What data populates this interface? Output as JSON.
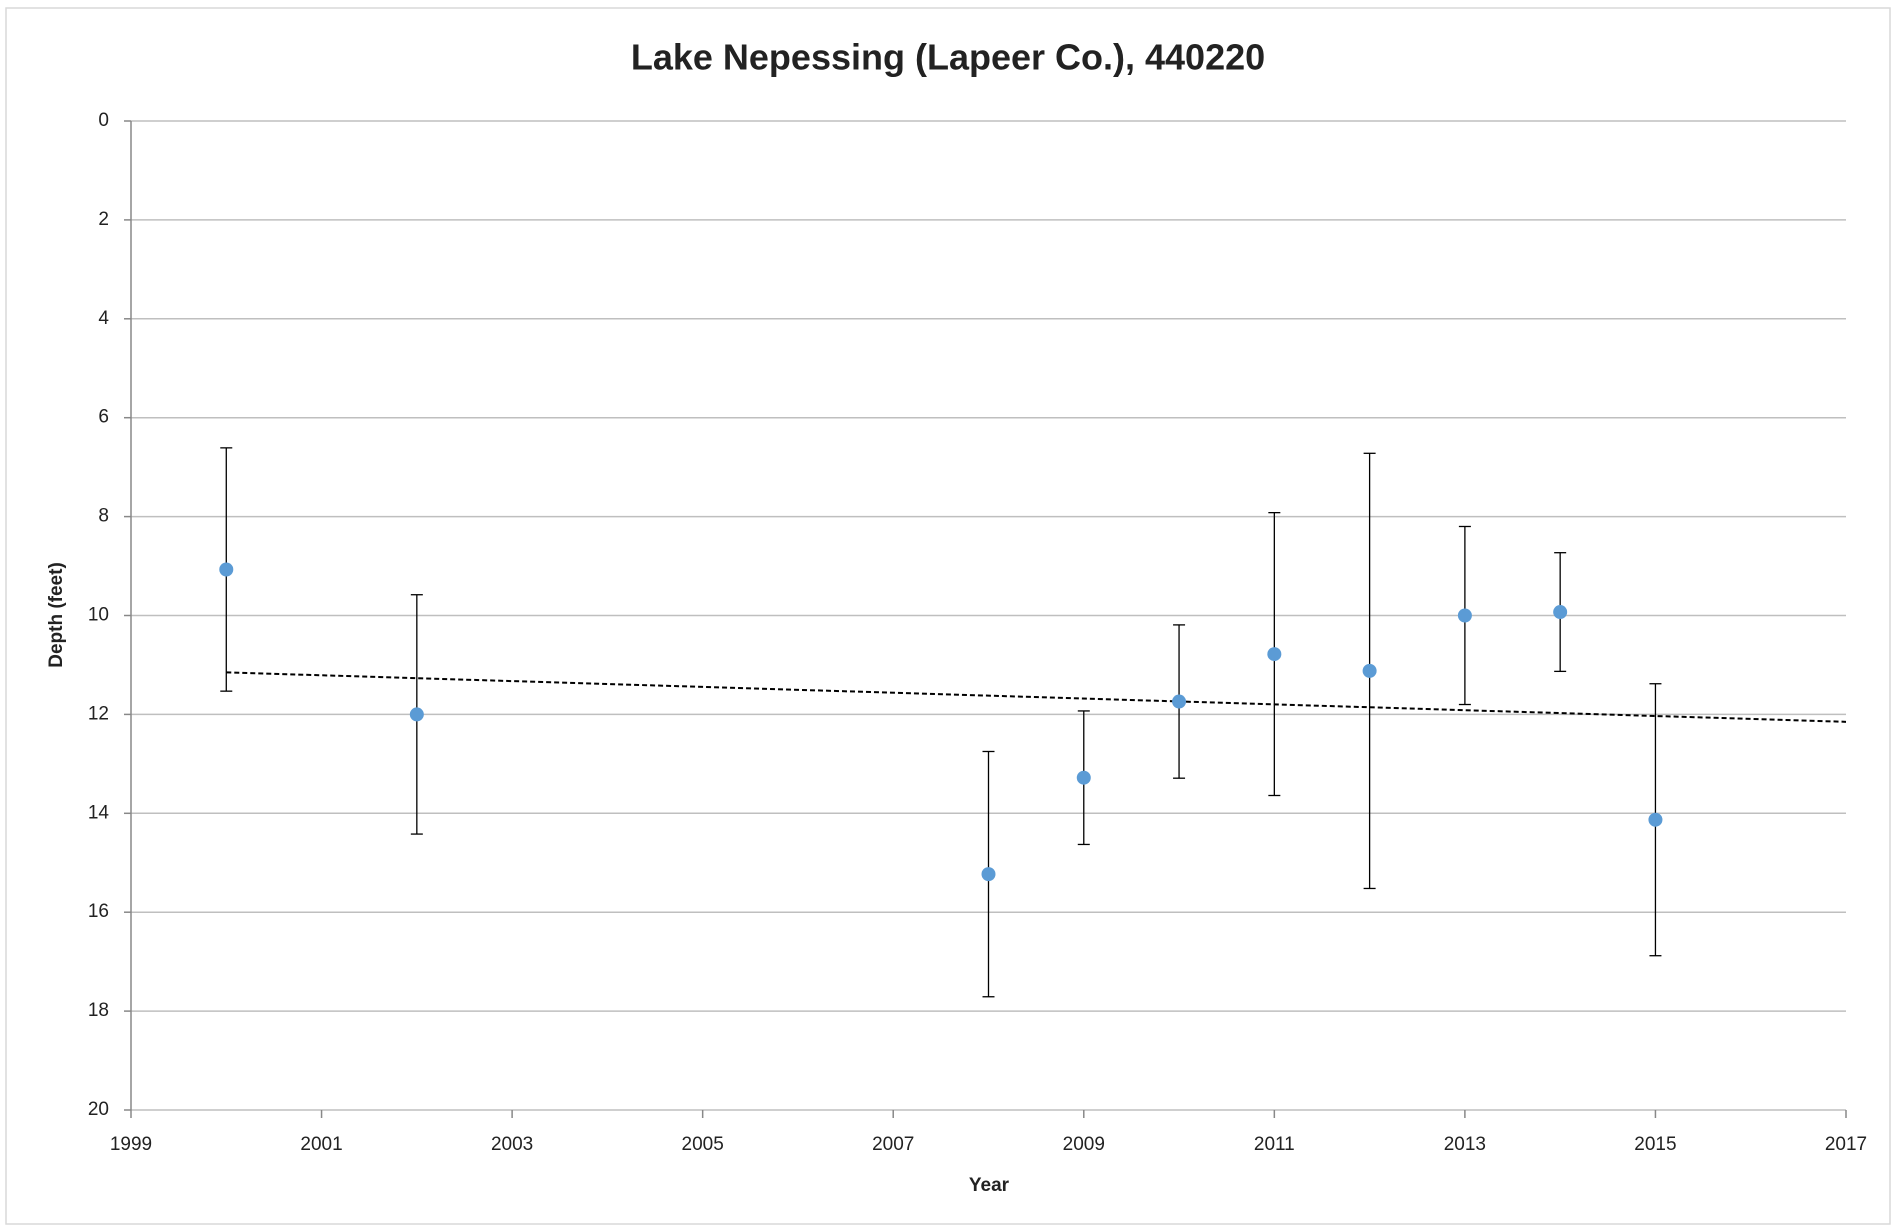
{
  "chart_data": {
    "type": "scatter",
    "title": "Lake Nepessing (Lapeer Co.), 440220",
    "x_label": "Year",
    "y_label": "Depth (feet)",
    "x": [
      2000,
      2002,
      2008,
      2009,
      2010,
      2011,
      2012,
      2013,
      2014,
      2015
    ],
    "values": [
      9.07,
      12.0,
      15.23,
      13.28,
      11.74,
      10.78,
      11.12,
      10.0,
      9.93,
      14.13
    ],
    "errors": [
      2.46,
      2.42,
      2.48,
      1.35,
      1.55,
      2.86,
      4.4,
      1.8,
      1.2,
      2.75
    ],
    "color": "#5b9bd5",
    "trendline": {
      "x": [
        2000,
        2017
      ],
      "values": [
        11.15,
        12.15
      ]
    },
    "xlim": [
      1999,
      2017
    ],
    "xticks": [
      1999,
      2001,
      2003,
      2005,
      2007,
      2009,
      2011,
      2013,
      2015,
      2017
    ],
    "ylim": [
      0,
      20
    ],
    "yticks": [
      0,
      2,
      4,
      6,
      8,
      10,
      12,
      14,
      16,
      18,
      20
    ],
    "y_inverted": true,
    "grid": true
  }
}
